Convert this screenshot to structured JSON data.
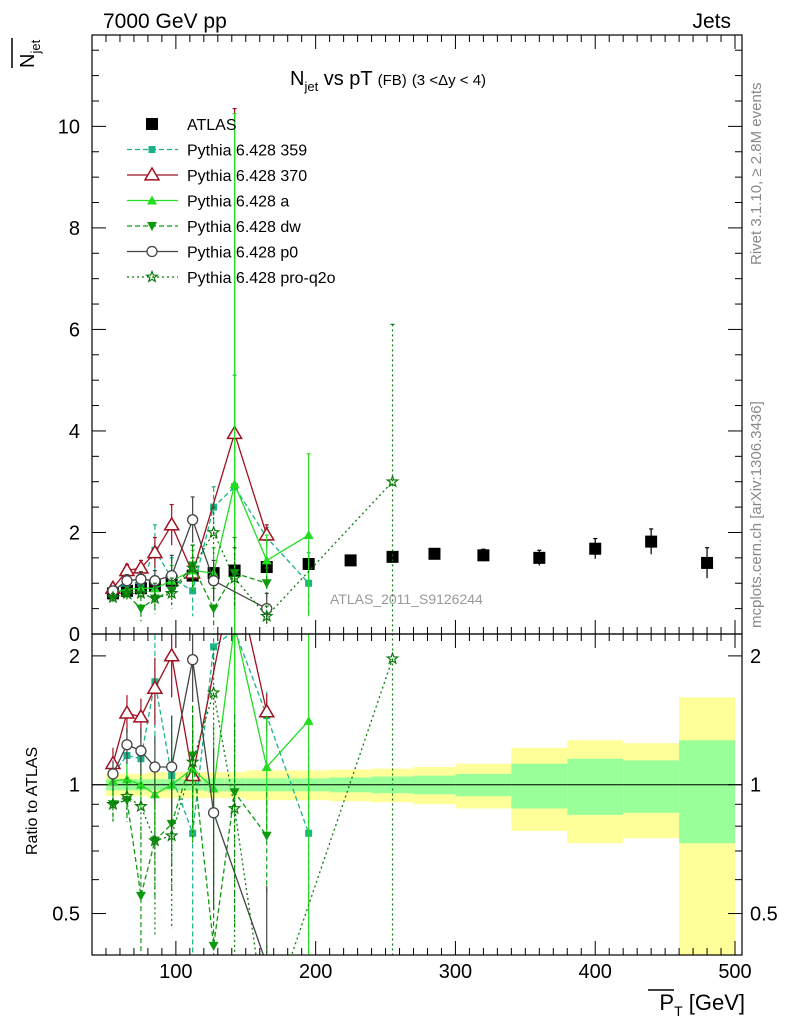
{
  "header": {
    "left": "7000 GeV pp",
    "right": "Jets",
    "side_top": "Rivet 3.1.10, ≥ 2.8M events",
    "side_bottom": "mcplots.cern.ch [arXiv:1306.3436]",
    "watermark": "ATLAS_2011_S9126244"
  },
  "chart_data": [
    {
      "type": "scatter",
      "panel": "main",
      "title_main": "N",
      "title_sub": "jet",
      "title_rest": " vs pT",
      "title_small": "(FB)",
      "title_range": "(3 <Δy < 4)",
      "ylabel_main": "N",
      "ylabel_sub": "jet",
      "xlabel": "P",
      "xlabel_sub": "T",
      "xlabel_unit": " [GeV]",
      "xlim": [
        40,
        505
      ],
      "ylim": [
        0,
        11.8
      ],
      "y_ticks": [
        0,
        2,
        4,
        6,
        8,
        10
      ],
      "x_ticks": [
        100,
        200,
        300,
        400,
        500
      ],
      "legend_position": "top-left",
      "series": [
        {
          "name": "ATLAS",
          "color": "#000000",
          "marker": "square-filled",
          "line": "none",
          "x": [
            55,
            65,
            75,
            85,
            97,
            112,
            127,
            142,
            165,
            195,
            225,
            255,
            285,
            320,
            360,
            400,
            440,
            480
          ],
          "y": [
            0.8,
            0.85,
            0.9,
            0.95,
            1.05,
            1.15,
            1.2,
            1.25,
            1.32,
            1.38,
            1.45,
            1.52,
            1.58,
            1.55,
            1.5,
            1.68,
            1.82,
            1.4
          ],
          "err": [
            0.02,
            0.02,
            0.02,
            0.02,
            0.03,
            0.03,
            0.04,
            0.05,
            0.05,
            0.06,
            0.07,
            0.08,
            0.1,
            0.12,
            0.15,
            0.2,
            0.25,
            0.3
          ]
        },
        {
          "name": "Pythia 6.428 359",
          "color": "#1ab38a",
          "marker": "square-small",
          "line": "dashed",
          "x": [
            55,
            65,
            75,
            85,
            97,
            112,
            127,
            142,
            165,
            195
          ],
          "y": [
            0.85,
            1.0,
            1.0,
            1.65,
            1.1,
            0.85,
            2.5,
            2.9,
            1.9,
            1.0
          ],
          "err": [
            0.1,
            0.15,
            0.2,
            0.5,
            0.4,
            0.5,
            0.4,
            2.2,
            0.2,
            0.6
          ]
        },
        {
          "name": "Pythia 6.428 370",
          "color": "#a01020",
          "marker": "triangle-open",
          "line": "solid",
          "x": [
            55,
            65,
            75,
            85,
            97,
            112,
            142,
            165
          ],
          "y": [
            0.9,
            1.25,
            1.3,
            1.6,
            2.15,
            1.2,
            3.95,
            1.95
          ],
          "err": [
            0.1,
            0.12,
            0.15,
            0.3,
            0.4,
            0.3,
            6.4,
            0.2
          ]
        },
        {
          "name": "Pythia 6.428 a",
          "color": "#22dd22",
          "marker": "triangle-filled",
          "line": "solid",
          "x": [
            55,
            65,
            75,
            85,
            97,
            112,
            127,
            142,
            165,
            195
          ],
          "y": [
            0.82,
            0.88,
            0.9,
            0.9,
            1.05,
            1.25,
            1.2,
            2.95,
            1.45,
            1.95
          ],
          "err": [
            0.08,
            0.1,
            0.12,
            0.2,
            0.3,
            0.4,
            0.5,
            7.3,
            0.5,
            1.6
          ]
        },
        {
          "name": "Pythia 6.428 dw",
          "color": "#0d9a0d",
          "marker": "triangle-down-filled",
          "line": "dashed",
          "x": [
            55,
            65,
            75,
            85,
            97,
            112,
            127,
            142,
            165
          ],
          "y": [
            0.72,
            0.78,
            0.5,
            0.7,
            0.85,
            1.35,
            0.5,
            1.2,
            1.0
          ],
          "err": [
            0.08,
            0.1,
            0.25,
            0.2,
            0.25,
            0.4,
            0.4,
            0.7,
            0.3
          ]
        },
        {
          "name": "Pythia 6.428 p0",
          "color": "#444444",
          "marker": "circle-open",
          "line": "solid",
          "x": [
            55,
            65,
            75,
            85,
            97,
            112,
            127,
            165
          ],
          "y": [
            0.85,
            1.05,
            1.08,
            1.05,
            1.15,
            2.25,
            1.05,
            0.5
          ],
          "err": [
            0.08,
            0.12,
            0.15,
            0.2,
            0.4,
            0.45,
            0.4,
            0.3
          ]
        },
        {
          "name": "Pythia 6.428 pro-q2o",
          "color": "#0a7a0a",
          "marker": "star",
          "line": "dotted",
          "x": [
            55,
            65,
            75,
            85,
            97,
            112,
            127,
            142,
            165,
            255
          ],
          "y": [
            0.72,
            0.8,
            0.8,
            0.7,
            0.8,
            1.3,
            2.0,
            1.1,
            0.35,
            3.0
          ],
          "err": [
            0.08,
            0.1,
            0.15,
            0.3,
            0.3,
            0.45,
            0.5,
            0.6,
            0.2,
            3.1
          ]
        }
      ]
    },
    {
      "type": "scatter",
      "panel": "ratio",
      "ylabel": "Ratio to ATLAS",
      "xlim": [
        40,
        505
      ],
      "ylim": [
        0.4,
        2.25
      ],
      "y_ticks": [
        0.5,
        1,
        2
      ],
      "x_ticks": [
        100,
        200,
        300,
        400,
        500
      ],
      "bins": [
        {
          "lo": 50,
          "hi": 60,
          "g": 0.03,
          "y": 0.06
        },
        {
          "lo": 60,
          "hi": 70,
          "g": 0.03,
          "y": 0.06
        },
        {
          "lo": 70,
          "hi": 80,
          "g": 0.03,
          "y": 0.06
        },
        {
          "lo": 80,
          "hi": 90,
          "g": 0.03,
          "y": 0.07
        },
        {
          "lo": 90,
          "hi": 105,
          "g": 0.03,
          "y": 0.07
        },
        {
          "lo": 105,
          "hi": 120,
          "g": 0.03,
          "y": 0.07
        },
        {
          "lo": 120,
          "hi": 135,
          "g": 0.035,
          "y": 0.07
        },
        {
          "lo": 135,
          "hi": 150,
          "g": 0.035,
          "y": 0.07
        },
        {
          "lo": 150,
          "hi": 180,
          "g": 0.035,
          "y": 0.08
        },
        {
          "lo": 180,
          "hi": 210,
          "g": 0.035,
          "y": 0.08
        },
        {
          "lo": 210,
          "hi": 240,
          "g": 0.04,
          "y": 0.085
        },
        {
          "lo": 240,
          "hi": 270,
          "g": 0.045,
          "y": 0.09
        },
        {
          "lo": 270,
          "hi": 300,
          "g": 0.05,
          "y": 0.1
        },
        {
          "lo": 300,
          "hi": 340,
          "g": 0.06,
          "y": 0.12
        },
        {
          "lo": 340,
          "hi": 380,
          "g": 0.12,
          "y": 0.22
        },
        {
          "lo": 380,
          "hi": 420,
          "g": 0.15,
          "y": 0.27
        },
        {
          "lo": 420,
          "hi": 460,
          "g": 0.14,
          "y": 0.25
        },
        {
          "lo": 460,
          "hi": 500,
          "g": 0.27,
          "y": 0.6
        }
      ],
      "series_ratio": [
        {
          "name": "Pythia 6.428 359",
          "y": [
            1.06,
            1.17,
            1.15,
            1.74,
            1.05,
            0.77,
            2.1,
            2.3,
            1.45,
            0.77
          ],
          "err": [
            0.1,
            0.18,
            0.2,
            0.5,
            0.4,
            0.4,
            0.3,
            1.0,
            0.2,
            0.45
          ]
        },
        {
          "name": "Pythia 6.428 370",
          "y": [
            1.12,
            1.47,
            1.44,
            1.68,
            2.0,
            1.05,
            3.2,
            1.48
          ],
          "err": [
            0.1,
            0.15,
            0.15,
            0.3,
            0.4,
            0.3,
            1.5,
            0.15
          ]
        },
        {
          "name": "Pythia 6.428 a",
          "y": [
            1.02,
            1.03,
            1.0,
            0.95,
            1.0,
            1.09,
            0.98,
            2.36,
            1.1,
            1.41
          ],
          "err": [
            0.08,
            0.1,
            0.12,
            0.2,
            0.3,
            0.35,
            0.4,
            1.5,
            0.35,
            1.1
          ]
        },
        {
          "name": "Pythia 6.428 dw",
          "y": [
            0.9,
            0.92,
            0.55,
            0.74,
            0.81,
            1.17,
            0.42,
            0.96,
            0.76
          ],
          "err": [
            0.08,
            0.1,
            0.25,
            0.2,
            0.25,
            0.35,
            0.35,
            0.5,
            0.2
          ]
        },
        {
          "name": "Pythia 6.428 p0",
          "y": [
            1.06,
            1.24,
            1.2,
            1.1,
            1.1,
            1.96,
            0.86,
            0.38
          ],
          "err": [
            0.08,
            0.12,
            0.15,
            0.2,
            0.35,
            0.4,
            0.35,
            0.2
          ]
        },
        {
          "name": "Pythia 6.428 pro-q2o",
          "y": [
            0.9,
            0.94,
            0.89,
            0.74,
            0.76,
            1.13,
            1.64,
            0.88,
            0.27,
            1.97
          ],
          "err": [
            0.08,
            0.1,
            0.15,
            0.3,
            0.3,
            0.4,
            0.45,
            0.5,
            0.15,
            2.0
          ]
        }
      ]
    }
  ]
}
